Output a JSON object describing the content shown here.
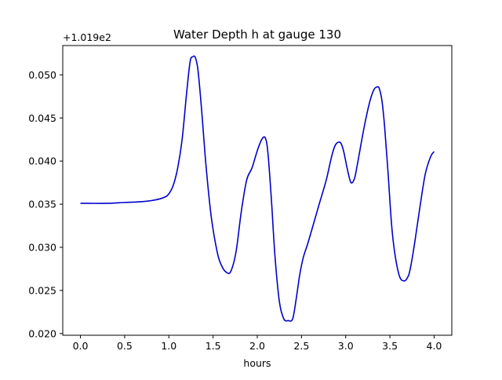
{
  "chart_data": {
    "type": "line",
    "title": "Water Depth h at gauge 130",
    "xlabel": "hours",
    "ylabel": "",
    "y_offset_text": "+1.019e2",
    "xlim": [
      -0.2,
      4.2
    ],
    "ylim": [
      0.0198,
      0.0534
    ],
    "grid": false,
    "x_ticks": [
      0.0,
      0.5,
      1.0,
      1.5,
      2.0,
      2.5,
      3.0,
      3.5,
      4.0
    ],
    "x_tick_labels": [
      "0.0",
      "0.5",
      "1.0",
      "1.5",
      "2.0",
      "2.5",
      "3.0",
      "3.5",
      "4.0"
    ],
    "y_ticks": [
      0.02,
      0.025,
      0.03,
      0.035,
      0.04,
      0.045,
      0.05
    ],
    "y_tick_labels": [
      "0.020",
      "0.025",
      "0.030",
      "0.035",
      "0.040",
      "0.045",
      "0.050"
    ],
    "series": [
      {
        "name": "",
        "color": "#0000cc",
        "x": [
          0.0,
          0.1,
          0.3,
          0.5,
          0.7,
          0.85,
          0.95,
          1.0,
          1.05,
          1.1,
          1.15,
          1.2,
          1.24,
          1.27,
          1.3,
          1.33,
          1.37,
          1.42,
          1.48,
          1.55,
          1.6,
          1.65,
          1.7,
          1.76,
          1.82,
          1.88,
          1.94,
          2.0,
          2.05,
          2.09,
          2.12,
          2.16,
          2.2,
          2.25,
          2.3,
          2.35,
          2.4,
          2.44,
          2.48,
          2.52,
          2.57,
          2.63,
          2.7,
          2.78,
          2.84,
          2.88,
          2.92,
          2.95,
          2.98,
          3.02,
          3.06,
          3.1,
          3.13,
          3.16,
          3.21,
          3.27,
          3.32,
          3.36,
          3.38,
          3.41,
          3.44,
          3.48,
          3.52,
          3.56,
          3.61,
          3.66,
          3.7,
          3.73,
          3.78,
          3.84,
          3.9,
          3.96,
          4.0
        ],
        "y": [
          0.0351,
          0.0351,
          0.0351,
          0.0352,
          0.0353,
          0.0355,
          0.0358,
          0.0362,
          0.0372,
          0.0392,
          0.0425,
          0.0478,
          0.0515,
          0.0521,
          0.052,
          0.0505,
          0.046,
          0.0395,
          0.0335,
          0.0293,
          0.0278,
          0.0271,
          0.0272,
          0.0295,
          0.0342,
          0.0378,
          0.0392,
          0.0412,
          0.0425,
          0.0427,
          0.041,
          0.0355,
          0.029,
          0.0237,
          0.0217,
          0.0215,
          0.0217,
          0.024,
          0.0268,
          0.0288,
          0.0304,
          0.0325,
          0.035,
          0.0378,
          0.0405,
          0.0418,
          0.0422,
          0.042,
          0.041,
          0.039,
          0.0375,
          0.038,
          0.0395,
          0.0412,
          0.044,
          0.0468,
          0.0483,
          0.0486,
          0.0484,
          0.047,
          0.044,
          0.0385,
          0.0325,
          0.029,
          0.0266,
          0.0261,
          0.0265,
          0.0275,
          0.0305,
          0.0347,
          0.0385,
          0.0405,
          0.0411
        ]
      }
    ]
  }
}
